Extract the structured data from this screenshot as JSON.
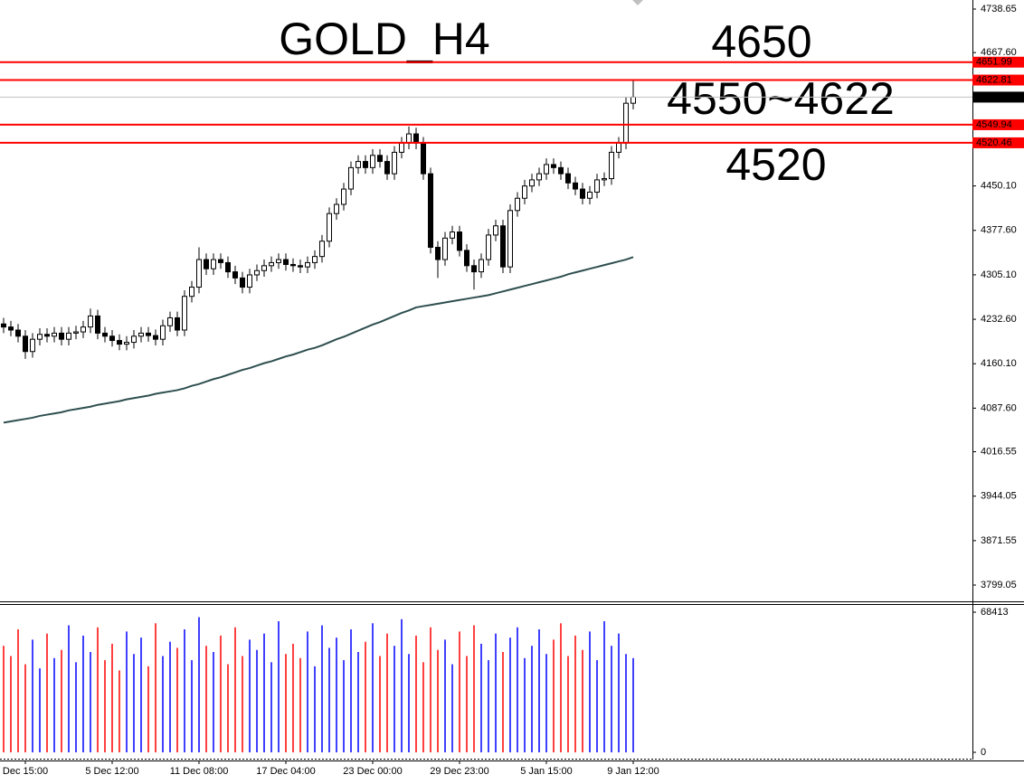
{
  "chart_data": [
    {
      "type": "candlestick",
      "categories": [
        null,
        null,
        null,
        "Dec 15:00",
        null,
        null,
        null,
        null,
        null,
        null,
        null,
        null,
        null,
        null,
        null,
        "5 Dec 12:00",
        null,
        null,
        null,
        null,
        null,
        null,
        null,
        null,
        null,
        null,
        null,
        "11 Dec 08:00",
        null,
        null,
        null,
        null,
        null,
        null,
        null,
        null,
        null,
        null,
        null,
        "17 Dec 04:00",
        null,
        null,
        null,
        null,
        null,
        null,
        null,
        null,
        null,
        null,
        null,
        "23 Dec 00:00",
        null,
        null,
        null,
        null,
        null,
        null,
        null,
        null,
        null,
        null,
        null,
        "29 Dec 23:00",
        null,
        null,
        null,
        null,
        null,
        null,
        null,
        null,
        null,
        null,
        null,
        "5 Jan 15:00",
        null,
        null,
        null,
        null,
        null,
        null,
        null,
        null,
        null,
        null,
        null,
        "9 Jan 12:00"
      ],
      "open": [
        4225,
        4220,
        4215,
        4205,
        4180,
        4200,
        4208,
        4205,
        4210,
        4200,
        4210,
        4212,
        4220,
        4238,
        4210,
        4205,
        4198,
        4192,
        4195,
        4205,
        4210,
        4206,
        4200,
        4222,
        4235,
        4215,
        4270,
        4285,
        4330,
        4315,
        4330,
        4325,
        4310,
        4300,
        4285,
        4305,
        4312,
        4320,
        4325,
        4330,
        4322,
        4320,
        4318,
        4325,
        4335,
        4360,
        4405,
        4420,
        4445,
        4480,
        4490,
        4480,
        4500,
        4490,
        4470,
        4505,
        4520,
        4535,
        4520,
        4470,
        4350,
        4330,
        4365,
        4375,
        4345,
        4320,
        4310,
        4330,
        4370,
        4385,
        4318,
        4410,
        4430,
        4450,
        4460,
        4470,
        4485,
        4480,
        4470,
        4455,
        4445,
        4430,
        4440,
        4460,
        4462,
        4505,
        4520,
        4585
      ],
      "high": [
        4235,
        4230,
        4225,
        4215,
        4210,
        4218,
        4218,
        4220,
        4220,
        4220,
        4222,
        4230,
        4250,
        4248,
        4220,
        4215,
        4208,
        4205,
        4215,
        4220,
        4220,
        4216,
        4232,
        4245,
        4245,
        4280,
        4295,
        4350,
        4340,
        4340,
        4340,
        4335,
        4320,
        4310,
        4315,
        4322,
        4330,
        4335,
        4340,
        4340,
        4332,
        4330,
        4335,
        4345,
        4370,
        4415,
        4430,
        4455,
        4490,
        4500,
        4500,
        4510,
        4510,
        4500,
        4515,
        4530,
        4547,
        4545,
        4530,
        4480,
        4360,
        4375,
        4385,
        4385,
        4355,
        4330,
        4340,
        4380,
        4395,
        4395,
        4420,
        4440,
        4460,
        4470,
        4480,
        4495,
        4495,
        4490,
        4480,
        4465,
        4455,
        4450,
        4470,
        4472,
        4515,
        4530,
        4595,
        4622
      ],
      "low": [
        4210,
        4205,
        4195,
        4168,
        4170,
        4190,
        4195,
        4195,
        4190,
        4190,
        4200,
        4202,
        4210,
        4200,
        4195,
        4188,
        4182,
        4182,
        4185,
        4195,
        4196,
        4190,
        4190,
        4212,
        4205,
        4205,
        4260,
        4275,
        4305,
        4305,
        4315,
        4300,
        4290,
        4275,
        4275,
        4295,
        4302,
        4310,
        4315,
        4312,
        4310,
        4308,
        4308,
        4315,
        4325,
        4350,
        4395,
        4410,
        4435,
        4470,
        4470,
        4470,
        4480,
        4460,
        4460,
        4495,
        4510,
        4510,
        4460,
        4340,
        4300,
        4320,
        4355,
        4335,
        4310,
        4281,
        4300,
        4320,
        4360,
        4308,
        4308,
        4400,
        4420,
        4440,
        4450,
        4460,
        4470,
        4460,
        4445,
        4435,
        4420,
        4420,
        4430,
        4450,
        4452,
        4495,
        4510,
        4575
      ],
      "close": [
        4220,
        4215,
        4205,
        4180,
        4200,
        4208,
        4205,
        4210,
        4200,
        4210,
        4212,
        4220,
        4238,
        4210,
        4205,
        4198,
        4192,
        4195,
        4205,
        4210,
        4206,
        4200,
        4222,
        4235,
        4215,
        4270,
        4285,
        4330,
        4315,
        4330,
        4325,
        4310,
        4300,
        4285,
        4305,
        4312,
        4320,
        4325,
        4330,
        4322,
        4320,
        4318,
        4325,
        4335,
        4360,
        4405,
        4420,
        4445,
        4480,
        4490,
        4480,
        4500,
        4490,
        4470,
        4505,
        4520,
        4535,
        4520,
        4470,
        4350,
        4330,
        4365,
        4375,
        4345,
        4320,
        4310,
        4330,
        4370,
        4385,
        4318,
        4410,
        4430,
        4450,
        4460,
        4470,
        4485,
        4480,
        4470,
        4455,
        4445,
        4430,
        4440,
        4460,
        4462,
        4505,
        4520,
        4585,
        4594.96
      ],
      "color": "#000000",
      "ma": {
        "color": "#2f4f4f",
        "values": [
          4064,
          4066,
          4068,
          4070,
          4072,
          4075,
          4077,
          4079,
          4081,
          4084,
          4086,
          4088,
          4090,
          4093,
          4095,
          4097,
          4099,
          4102,
          4104,
          4106,
          4108,
          4111,
          4113,
          4115,
          4117,
          4120,
          4124,
          4127,
          4131,
          4135,
          4138,
          4142,
          4146,
          4150,
          4153,
          4157,
          4161,
          4164,
          4168,
          4172,
          4175,
          4179,
          4183,
          4186,
          4190,
          4195,
          4200,
          4204,
          4209,
          4214,
          4219,
          4224,
          4228,
          4233,
          4238,
          4243,
          4247,
          4252,
          4254,
          4256,
          4258,
          4260,
          4262,
          4264,
          4266,
          4268,
          4270,
          4272,
          4275,
          4278,
          4281,
          4284,
          4287,
          4290,
          4293,
          4296,
          4299,
          4302,
          4306,
          4309,
          4312,
          4315,
          4318,
          4321,
          4324,
          4327,
          4330,
          4334
        ]
      },
      "hlines": [
        4651.99,
        4622.81,
        4549.94,
        4520.46
      ],
      "hline_color": "#ff0000",
      "ylim": [
        3772.5,
        4753.4
      ],
      "yticks": [
        4738.65,
        {
          "value": 4667.6,
          "label": "4667.60"
        },
        {
          "value": 4450.1,
          "label": "4450.10"
        },
        {
          "value": 4377.6,
          "label": "4377.60"
        },
        {
          "value": 4305.1,
          "label": "4305.10"
        },
        {
          "value": 4232.6,
          "label": "4232.60"
        },
        {
          "value": 4160.1,
          "label": "4160.10"
        },
        {
          "value": 4087.6,
          "label": "4087.60"
        },
        4016.55,
        3944.05,
        3871.55,
        3799.05
      ],
      "annotations": [
        {
          "text": "GOLD_H4",
          "color": "#ff0000"
        },
        {
          "text": "4650",
          "color": "#ff0000"
        },
        {
          "text": "4550~4622",
          "color": "#000080"
        },
        {
          "text": "4520",
          "color": "#ff0000"
        }
      ]
    },
    {
      "type": "volume",
      "values": [
        52000,
        47000,
        60000,
        43000,
        55000,
        41000,
        58000,
        46000,
        50000,
        62000,
        44000,
        57000,
        49000,
        61000,
        45000,
        53000,
        40000,
        59000,
        48000,
        56000,
        42000,
        63000,
        47000,
        54000,
        51000,
        60000,
        45000,
        66000,
        52000,
        49000,
        57000,
        43000,
        61000,
        47000,
        55000,
        50000,
        58000,
        44000,
        64000,
        48000,
        53000,
        46000,
        59000,
        42000,
        62000,
        51000,
        56000,
        45000,
        60000,
        49000,
        54000,
        63000,
        47000,
        58000,
        52000,
        65000,
        48000,
        57000,
        44000,
        61000,
        50000,
        55000,
        43000,
        59000,
        47000,
        62000,
        53000,
        45000,
        58000,
        49000,
        56000,
        61000,
        46000,
        52000,
        60000,
        48000,
        55000,
        63000,
        47000,
        57000,
        50000,
        59000,
        45000,
        64000,
        52000,
        58000,
        48000,
        46000
      ],
      "up_color": "#0000ff",
      "down_color": "#ff0000",
      "ylim": [
        0,
        72385
      ],
      "yticks": [
        68413,
        0
      ]
    }
  ]
}
